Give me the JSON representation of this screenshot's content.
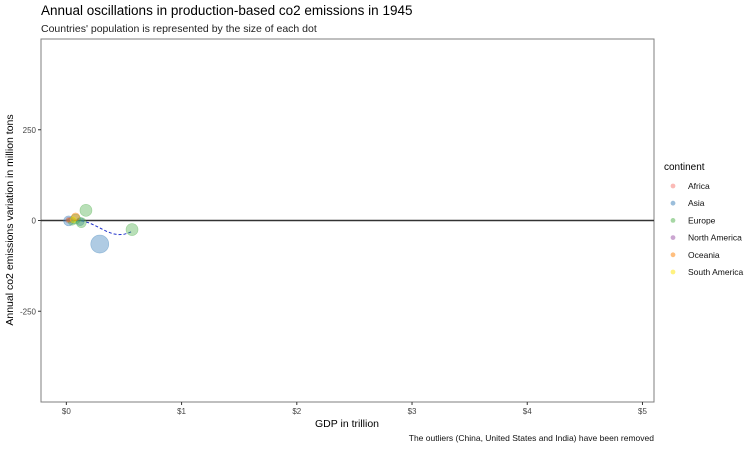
{
  "chart_data": {
    "type": "scatter",
    "title": "Annual oscillations in production-based co2 emissions in 1945",
    "subtitle": "Countries' population is represented by the size of each dot",
    "xlabel": "GDP in trillion",
    "ylabel": "Annual co2 emissions variation in million tons",
    "caption": "The outliers (China, United States and India) have been removed",
    "xlim": [
      -0.22,
      5.1
    ],
    "ylim": [
      -500,
      500
    ],
    "x_ticks": [
      0,
      1,
      2,
      3,
      4,
      5
    ],
    "x_tick_labels": [
      "$0",
      "$1",
      "$2",
      "$3",
      "$4",
      "$5"
    ],
    "y_ticks": [
      -250,
      0,
      250
    ],
    "y_tick_labels": [
      "-250",
      "0",
      "250"
    ],
    "grid": false,
    "zero_line": true,
    "legend": {
      "title": "continent",
      "placement": "right",
      "entries": [
        {
          "label": "Africa",
          "color": "#f8766d"
        },
        {
          "label": "Asia",
          "color": "#377eb8"
        },
        {
          "label": "Europe",
          "color": "#4daf4a"
        },
        {
          "label": "North America",
          "color": "#984ea3"
        },
        {
          "label": "Oceania",
          "color": "#ff7f00"
        },
        {
          "label": "South America",
          "color": "#ffe600"
        }
      ]
    },
    "series": [
      {
        "name": "Africa",
        "color": "#f8766d",
        "points": [
          {
            "x": 0.02,
            "y": 1,
            "size": 3
          },
          {
            "x": 0.05,
            "y": -2,
            "size": 2
          }
        ]
      },
      {
        "name": "Asia",
        "color": "#377eb8",
        "points": [
          {
            "x": 0.29,
            "y": -65,
            "size": 9
          },
          {
            "x": 0.02,
            "y": -1,
            "size": 5
          },
          {
            "x": 0.12,
            "y": -3,
            "size": 4
          }
        ]
      },
      {
        "name": "Europe",
        "color": "#4daf4a",
        "points": [
          {
            "x": 0.17,
            "y": 28,
            "size": 6
          },
          {
            "x": 0.57,
            "y": -25,
            "size": 6
          },
          {
            "x": 0.08,
            "y": 4,
            "size": 5
          },
          {
            "x": 0.05,
            "y": -2,
            "size": 4
          },
          {
            "x": 0.13,
            "y": -6,
            "size": 5
          }
        ]
      },
      {
        "name": "North America",
        "color": "#984ea3",
        "points": [
          {
            "x": 0.03,
            "y": 2,
            "size": 2
          }
        ]
      },
      {
        "name": "Oceania",
        "color": "#ff7f00",
        "points": [
          {
            "x": 0.08,
            "y": 10,
            "size": 4
          },
          {
            "x": 0.02,
            "y": 1,
            "size": 2
          }
        ]
      },
      {
        "name": "South America",
        "color": "#ffe600",
        "points": [
          {
            "x": 0.06,
            "y": 2,
            "size": 3
          }
        ]
      }
    ],
    "trend_line": {
      "color": "#2233cc",
      "x": [
        0.0,
        0.05,
        0.1,
        0.15,
        0.2,
        0.25,
        0.3,
        0.35,
        0.4,
        0.45,
        0.5,
        0.55,
        0.57
      ],
      "y": [
        2,
        1,
        0,
        -2,
        -7,
        -14,
        -22,
        -30,
        -36,
        -39,
        -38,
        -33,
        -30
      ]
    }
  }
}
